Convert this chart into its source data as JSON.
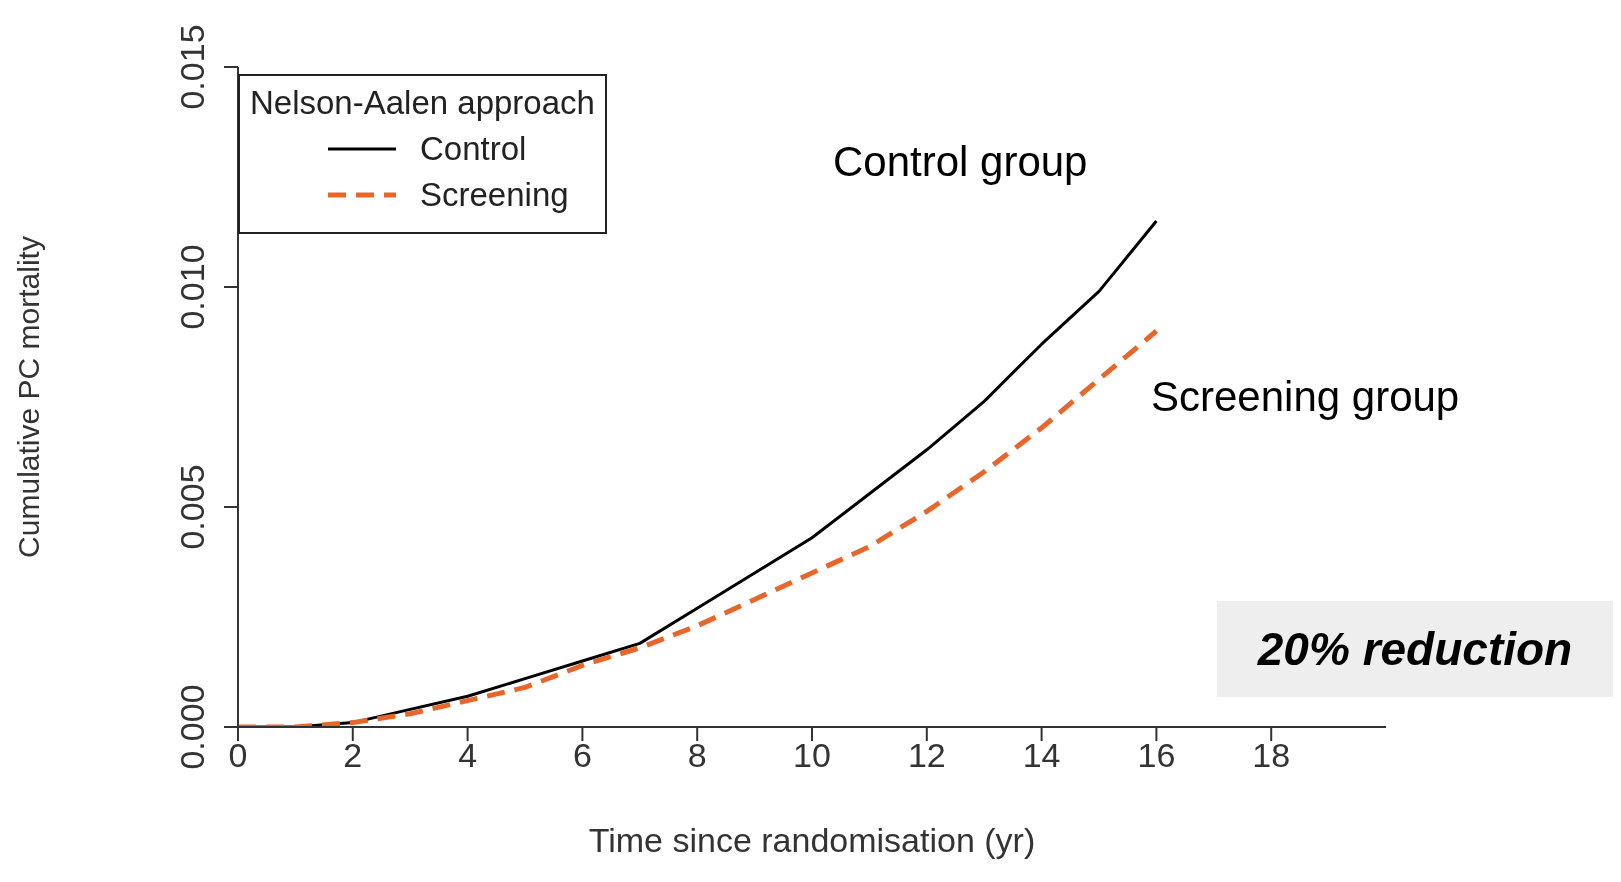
{
  "chart_data": {
    "type": "line",
    "xlabel": "Time since randomisation (yr)",
    "ylabel": "Cumulative PC mortality",
    "legend_title": "Nelson-Aalen approach",
    "legend": "top left",
    "grid": false,
    "marker": "none",
    "x": [
      0,
      1,
      2,
      3,
      4,
      5,
      6,
      7,
      8,
      9,
      10,
      11,
      12,
      13,
      14,
      15,
      16
    ],
    "series": [
      {
        "name": "Control",
        "color": "#000000",
        "line_style": "solid",
        "values": [
          0,
          0,
          0.0001,
          0.0004,
          0.0007,
          0.0011,
          0.0015,
          0.0019,
          0.0027,
          0.0035,
          0.0043,
          0.0053,
          0.0063,
          0.0074,
          0.0087,
          0.0099,
          0.0115
        ]
      },
      {
        "name": "Screening",
        "color": "#e8662a",
        "line_style": "dashed",
        "values": [
          0,
          0,
          0.0001,
          0.0003,
          0.0006,
          0.0009,
          0.0014,
          0.0018,
          0.0023,
          0.0029,
          0.0035,
          0.0041,
          0.0049,
          0.0058,
          0.0068,
          0.0079,
          0.009
        ]
      }
    ],
    "xlim": [
      0,
      20
    ],
    "xticks": [
      0,
      2,
      4,
      6,
      8,
      10,
      12,
      14,
      16,
      18
    ],
    "ylim": [
      0,
      0.015
    ],
    "yticks": [
      {
        "value": 0,
        "label": "0.000"
      },
      {
        "value": 0.005,
        "label": "0.005"
      },
      {
        "value": 0.01,
        "label": "0.010"
      },
      {
        "value": 0.015,
        "label": "0.015"
      }
    ],
    "annotations": [
      "Control group",
      "Screening group",
      "20% reduction"
    ]
  }
}
